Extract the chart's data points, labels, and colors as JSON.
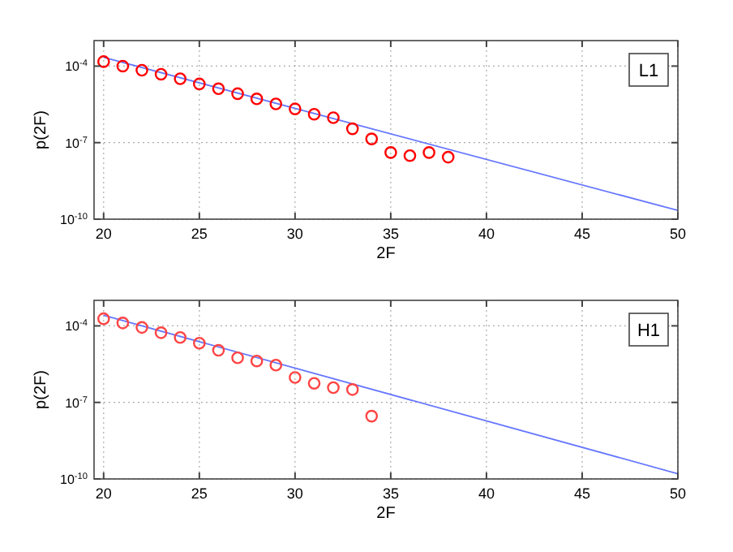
{
  "chart_data": [
    {
      "type": "scatter",
      "xlabel": "2F",
      "ylabel": "p(2F)",
      "annotations": [
        "L1"
      ],
      "log": "y",
      "grid": true,
      "xlim": [
        19.5,
        50
      ],
      "xticks": [
        20,
        25,
        30,
        35,
        40,
        45,
        50
      ],
      "ylim": [
        1e-10,
        0.001
      ],
      "yticks": [
        {
          "value": 1e-10,
          "label": "10$^{-10}$"
        },
        {
          "value": 1e-07,
          "label": "10$^{-7}$"
        },
        {
          "value": 0.0001,
          "label": "10$^{-4}$"
        }
      ],
      "series": [
        {
          "type": "scatter",
          "marker": "circle",
          "color": "#ff0000",
          "x": [
            20,
            21,
            22,
            23,
            24,
            25,
            26,
            27,
            28,
            29,
            30,
            31,
            32,
            33,
            34,
            35,
            36,
            37,
            38
          ],
          "values": [
            0.00015,
            0.0001,
            6.9e-05,
            4.8e-05,
            3.2e-05,
            2e-05,
            1.3e-05,
            8.3e-06,
            5.2e-06,
            3.3e-06,
            2.1e-06,
            1.3e-06,
            9.5e-07,
            3.5e-07,
            1.4e-07,
            4.1e-08,
            3.1e-08,
            4.1e-08,
            2.7e-08
          ]
        },
        {
          "type": "line",
          "marker": "none",
          "line_style": "solid",
          "color": "#6677ff",
          "x": [
            20,
            50
          ],
          "values": [
            0.00022,
            2.2e-10
          ]
        }
      ]
    },
    {
      "type": "scatter",
      "xlabel": "2F",
      "ylabel": "p(2F)",
      "annotations": [
        "H1"
      ],
      "log": "y",
      "grid": true,
      "xlim": [
        19.5,
        50
      ],
      "xticks": [
        20,
        25,
        30,
        35,
        40,
        45,
        50
      ],
      "ylim": [
        1e-10,
        0.001
      ],
      "yticks": [
        {
          "value": 1e-10,
          "label": "10$^{-10}$"
        },
        {
          "value": 1e-07,
          "label": "10$^{-7}$"
        },
        {
          "value": 0.0001,
          "label": "10$^{-4}$"
        }
      ],
      "series": [
        {
          "type": "scatter",
          "marker": "circle",
          "color": "#ff4444",
          "x": [
            20,
            21,
            22,
            23,
            24,
            25,
            26,
            27,
            28,
            29,
            30,
            31,
            32,
            33,
            34
          ],
          "values": [
            0.00019,
            0.00013,
            8.7e-05,
            5.4e-05,
            3.5e-05,
            2.1e-05,
            1.1e-05,
            5.6e-06,
            4.2e-06,
            2.9e-06,
            9.5e-07,
            5.6e-07,
            3.8e-07,
            3.2e-07,
            2.9e-08
          ]
        },
        {
          "type": "line",
          "marker": "none",
          "line_style": "solid",
          "color": "#6677ff",
          "x": [
            20,
            50
          ],
          "values": [
            0.00026,
            1.6e-10
          ]
        }
      ]
    }
  ]
}
